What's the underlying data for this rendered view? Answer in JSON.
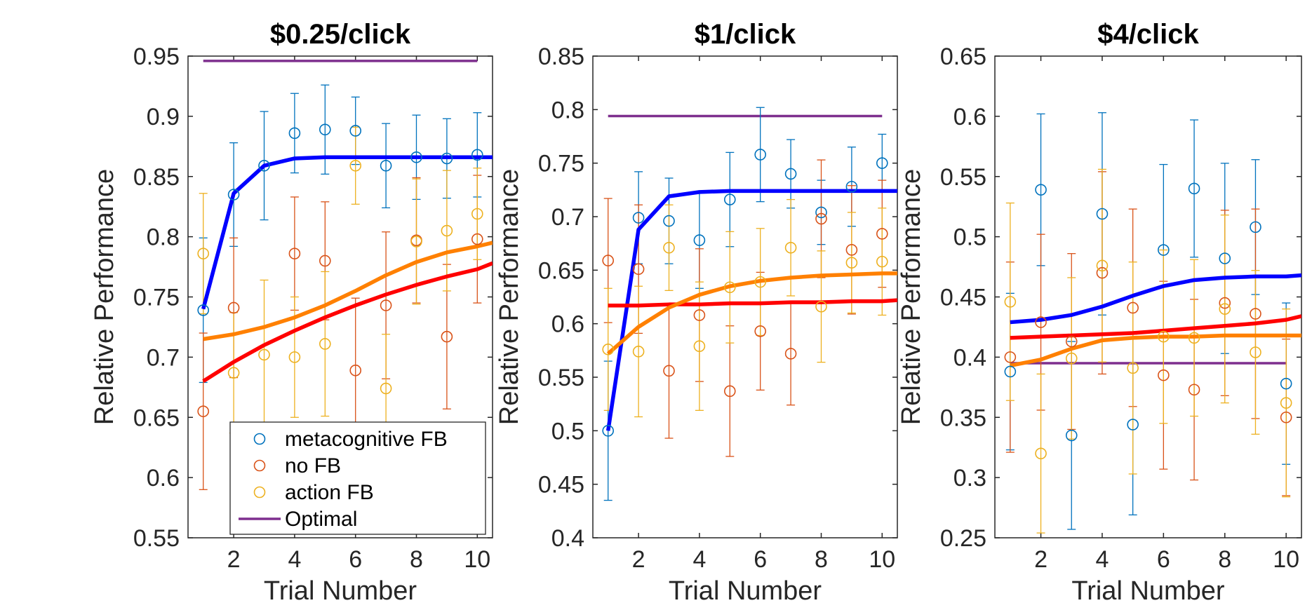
{
  "legend": {
    "entries": [
      {
        "label": "metacognitive FB",
        "color": "#0072BD",
        "marker": "circle"
      },
      {
        "label": "no FB",
        "color": "#D95319",
        "marker": "circle"
      },
      {
        "label": "action FB",
        "color": "#EDB120",
        "marker": "circle"
      },
      {
        "label": "Optimal",
        "color": "#7E2F8E",
        "marker": "line"
      }
    ],
    "placement": "lower-right of first panel"
  },
  "chart_data": [
    {
      "type": "line",
      "title": "$0.25/click",
      "xlabel": "Trial Number",
      "ylabel": "Relative Performance",
      "xlim": [
        0.5,
        10.5
      ],
      "ylim": [
        0.55,
        0.95
      ],
      "xticks": [
        2,
        4,
        6,
        8,
        10
      ],
      "yticks": [
        0.55,
        0.6,
        0.65,
        0.7,
        0.75,
        0.8,
        0.85,
        0.9,
        0.95
      ],
      "x": [
        1,
        2,
        3,
        4,
        5,
        6,
        7,
        8,
        9,
        10
      ],
      "grid": false,
      "points": [
        {
          "name": "metacognitive FB",
          "color": "#0072BD",
          "values": [
            0.739,
            0.835,
            0.859,
            0.886,
            0.889,
            0.888,
            0.859,
            0.866,
            0.865,
            0.868
          ],
          "err": [
            0.06,
            0.043,
            0.045,
            0.033,
            0.037,
            0.028,
            0.035,
            0.035,
            0.033,
            0.035
          ]
        },
        {
          "name": "no FB",
          "color": "#D95319",
          "values": [
            0.655,
            0.741,
            null,
            0.786,
            0.78,
            0.689,
            0.743,
            0.797,
            0.717,
            0.798
          ],
          "err": [
            0.065,
            0.058,
            0,
            0.047,
            0.049,
            0.06,
            0.061,
            0.052,
            0.06,
            0.053
          ]
        },
        {
          "name": "action FB",
          "color": "#EDB120",
          "values": [
            0.786,
            0.687,
            0.702,
            0.7,
            0.711,
            0.859,
            0.674,
            0.796,
            0.805,
            0.819
          ],
          "err": [
            0.05,
            0.05,
            0.062,
            0.05,
            0.06,
            0.032,
            0.045,
            0.052,
            0.05,
            0.038
          ]
        }
      ],
      "fits": [
        {
          "name": "metacognitive FB",
          "color": "#0000FF",
          "values": [
            0.74,
            0.836,
            0.859,
            0.865,
            0.866,
            0.866,
            0.866,
            0.866,
            0.866,
            0.866
          ],
          "x_end": 10.5
        },
        {
          "name": "no FB",
          "color": "#FF0000",
          "values": [
            0.68,
            0.696,
            0.71,
            0.722,
            0.733,
            0.743,
            0.752,
            0.76,
            0.767,
            0.773
          ],
          "x_end": 10.5,
          "end_value": 0.778
        },
        {
          "name": "action FB",
          "color": "#FF8000",
          "values": [
            0.715,
            0.719,
            0.725,
            0.733,
            0.743,
            0.755,
            0.768,
            0.779,
            0.787,
            0.792
          ],
          "x_end": 10.5,
          "end_value": 0.795
        }
      ],
      "optimal": {
        "value": 0.946,
        "x_range": [
          1,
          10
        ]
      }
    },
    {
      "type": "line",
      "title": "$1/click",
      "xlabel": "Trial Number",
      "ylabel": "Relative Performance",
      "xlim": [
        0.5,
        10.5
      ],
      "ylim": [
        0.4,
        0.85
      ],
      "xticks": [
        2,
        4,
        6,
        8,
        10
      ],
      "yticks": [
        0.4,
        0.45,
        0.5,
        0.55,
        0.6,
        0.65,
        0.7,
        0.75,
        0.8,
        0.85
      ],
      "x": [
        1,
        2,
        3,
        4,
        5,
        6,
        7,
        8,
        9,
        10
      ],
      "grid": false,
      "points": [
        {
          "name": "metacognitive FB",
          "color": "#0072BD",
          "values": [
            0.5,
            0.699,
            0.696,
            0.678,
            0.716,
            0.758,
            0.74,
            0.704,
            0.728,
            0.75
          ],
          "err": [
            0.065,
            0.043,
            0.04,
            0.045,
            0.044,
            0.044,
            0.032,
            0.03,
            0.037,
            0.027
          ]
        },
        {
          "name": "no FB",
          "color": "#D95319",
          "values": [
            0.659,
            0.651,
            0.556,
            0.608,
            0.537,
            0.593,
            0.572,
            0.698,
            0.669,
            0.684
          ],
          "err": [
            0.058,
            0.06,
            0.063,
            0.062,
            0.061,
            0.055,
            0.048,
            0.055,
            0.06,
            0.05
          ]
        },
        {
          "name": "action FB",
          "color": "#EDB120",
          "values": [
            0.576,
            0.574,
            0.671,
            0.579,
            0.634,
            0.639,
            0.671,
            0.616,
            0.657,
            0.658
          ],
          "err": [
            0.057,
            0.061,
            0.04,
            0.06,
            0.052,
            0.05,
            0.045,
            0.052,
            0.047,
            0.05
          ]
        }
      ],
      "fits": [
        {
          "name": "metacognitive FB",
          "color": "#0000FF",
          "values": [
            0.5,
            0.688,
            0.719,
            0.723,
            0.724,
            0.724,
            0.724,
            0.724,
            0.724,
            0.724
          ],
          "x_end": 10.5,
          "end_value": 0.724
        },
        {
          "name": "no FB",
          "color": "#FF0000",
          "values": [
            0.617,
            0.617,
            0.618,
            0.618,
            0.619,
            0.619,
            0.62,
            0.62,
            0.621,
            0.621
          ],
          "x_end": 10.5,
          "end_value": 0.622
        },
        {
          "name": "action FB",
          "color": "#FF8000",
          "values": [
            0.572,
            0.597,
            0.615,
            0.627,
            0.635,
            0.64,
            0.643,
            0.645,
            0.646,
            0.647
          ],
          "x_end": 10.5,
          "end_value": 0.647
        }
      ],
      "optimal": {
        "value": 0.794,
        "x_range": [
          1,
          10
        ]
      }
    },
    {
      "type": "line",
      "title": "$4/click",
      "xlabel": "Trial Number",
      "ylabel": "Relative Performance",
      "xlim": [
        0.5,
        10.5
      ],
      "ylim": [
        0.25,
        0.65
      ],
      "xticks": [
        2,
        4,
        6,
        8,
        10
      ],
      "yticks": [
        0.25,
        0.3,
        0.35,
        0.4,
        0.45,
        0.5,
        0.55,
        0.6,
        0.65
      ],
      "x": [
        1,
        2,
        3,
        4,
        5,
        6,
        7,
        8,
        9,
        10
      ],
      "grid": false,
      "points": [
        {
          "name": "metacognitive FB",
          "color": "#0072BD",
          "values": [
            0.388,
            0.539,
            0.335,
            0.519,
            0.344,
            0.489,
            0.54,
            0.482,
            0.508,
            0.378
          ],
          "err": [
            0.065,
            0.063,
            0.078,
            0.084,
            0.075,
            0.071,
            0.057,
            0.079,
            0.056,
            0.067
          ]
        },
        {
          "name": "no FB",
          "color": "#D95319",
          "values": [
            0.4,
            0.429,
            0.413,
            0.47,
            0.441,
            0.385,
            0.373,
            0.445,
            0.436,
            0.35
          ],
          "err": [
            0.079,
            0.073,
            0.073,
            0.084,
            0.082,
            0.078,
            0.075,
            0.077,
            0.087,
            0.065
          ]
        },
        {
          "name": "action FB",
          "color": "#EDB120",
          "values": [
            0.446,
            0.32,
            0.399,
            0.476,
            0.391,
            0.417,
            0.416,
            0.44,
            0.404,
            0.362
          ],
          "err": [
            0.082,
            0.066,
            0.067,
            0.08,
            0.088,
            0.072,
            0.065,
            0.078,
            0.068,
            0.078
          ]
        }
      ],
      "fits": [
        {
          "name": "metacognitive FB",
          "color": "#0000FF",
          "values": [
            0.429,
            0.431,
            0.435,
            0.442,
            0.451,
            0.459,
            0.464,
            0.466,
            0.467,
            0.467
          ],
          "x_end": 10.5,
          "end_value": 0.468
        },
        {
          "name": "no FB",
          "color": "#FF0000",
          "values": [
            0.416,
            0.417,
            0.418,
            0.419,
            0.42,
            0.422,
            0.424,
            0.426,
            0.428,
            0.431
          ],
          "x_end": 10.5,
          "end_value": 0.434
        },
        {
          "name": "action FB",
          "color": "#FF8000",
          "values": [
            0.393,
            0.398,
            0.407,
            0.414,
            0.416,
            0.417,
            0.417,
            0.418,
            0.418,
            0.418
          ],
          "x_end": 10.5,
          "end_value": 0.418
        }
      ],
      "optimal": {
        "value": 0.395,
        "x_range": [
          1,
          10
        ]
      }
    }
  ]
}
